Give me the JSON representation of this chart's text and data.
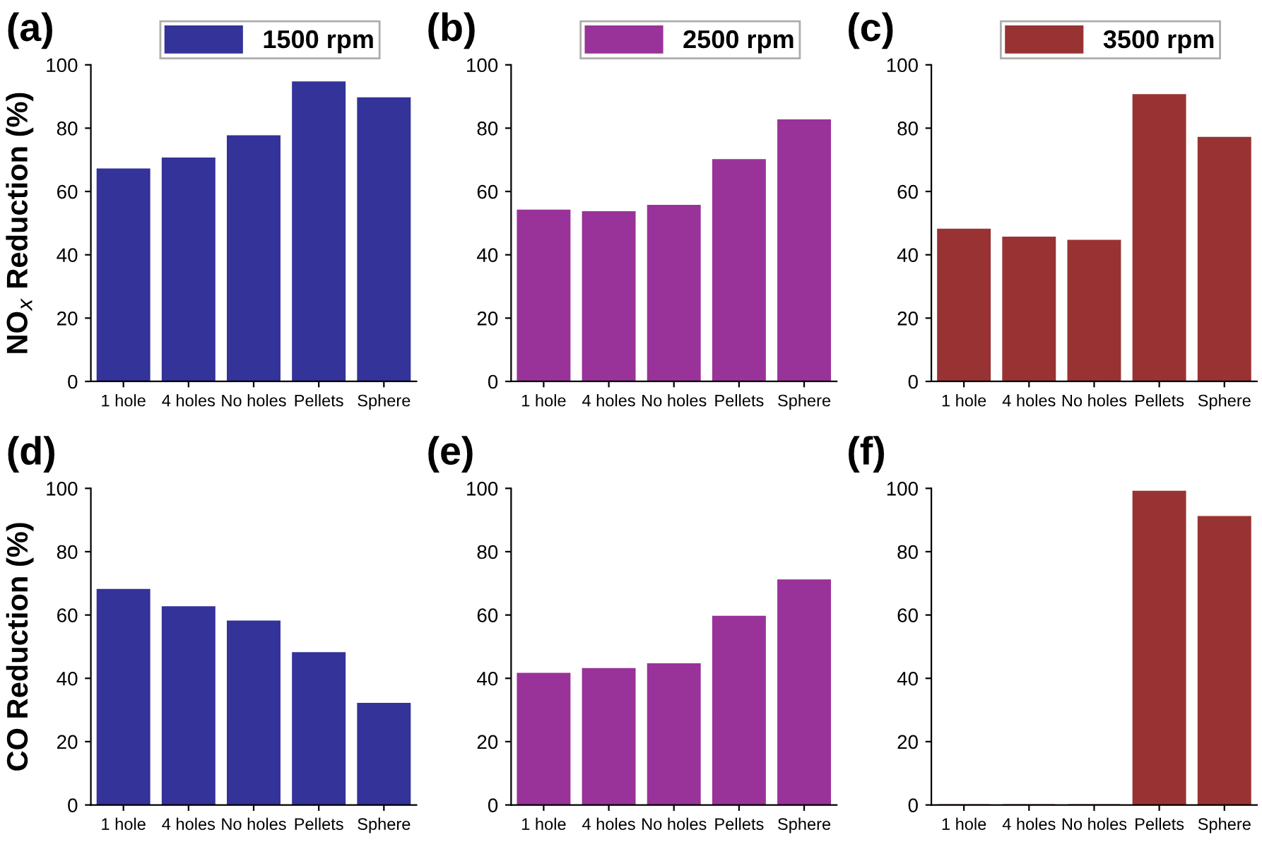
{
  "chart_data": [
    {
      "type": "bar",
      "title": "(a)",
      "ylabel": "NO$_{x}$ Reduction (%)",
      "categories": [
        "1 hole",
        "4 holes",
        "No holes",
        "Pellets",
        "Sphere"
      ],
      "legend": "top",
      "series": [
        {
          "name": "1500 rpm",
          "color": "#333399",
          "values": [
            67,
            70.5,
            77.5,
            94.5,
            89.5
          ]
        }
      ],
      "ylim": [
        0,
        100
      ],
      "yticks": [
        0,
        20,
        40,
        60,
        80,
        100
      ]
    },
    {
      "type": "bar",
      "title": "(b)",
      "categories": [
        "1 hole",
        "4 holes",
        "No holes",
        "Pellets",
        "Sphere"
      ],
      "legend": "top",
      "series": [
        {
          "name": "2500 rpm",
          "color": "#993399",
          "values": [
            54,
            53.5,
            55.5,
            70,
            82.5
          ]
        }
      ],
      "ylim": [
        0,
        100
      ],
      "yticks": [
        0,
        20,
        40,
        60,
        80,
        100
      ]
    },
    {
      "type": "bar",
      "title": "(c)",
      "categories": [
        "1 hole",
        "4 holes",
        "No holes",
        "Pellets",
        "Sphere"
      ],
      "legend": "top",
      "series": [
        {
          "name": "3500 rpm",
          "color": "#993333",
          "values": [
            48,
            45.5,
            44.5,
            90.5,
            77
          ]
        }
      ],
      "ylim": [
        0,
        100
      ],
      "yticks": [
        0,
        20,
        40,
        60,
        80,
        100
      ]
    },
    {
      "type": "bar",
      "title": "(d)",
      "ylabel": "CO Reduction (%)",
      "categories": [
        "1 hole",
        "4 holes",
        "No holes",
        "Pellets",
        "Sphere"
      ],
      "series": [
        {
          "color": "#333399",
          "values": [
            68,
            62.5,
            58,
            48,
            32
          ]
        }
      ],
      "ylim": [
        0,
        100
      ],
      "yticks": [
        0,
        20,
        40,
        60,
        80,
        100
      ]
    },
    {
      "type": "bar",
      "title": "(e)",
      "categories": [
        "1 hole",
        "4 holes",
        "No holes",
        "Pellets",
        "Sphere"
      ],
      "series": [
        {
          "color": "#993399",
          "values": [
            41.5,
            43,
            44.5,
            59.5,
            71
          ]
        }
      ],
      "ylim": [
        0,
        100
      ],
      "yticks": [
        0,
        20,
        40,
        60,
        80,
        100
      ]
    },
    {
      "type": "bar",
      "title": "(f)",
      "categories": [
        "1 hole",
        "4 holes",
        "No holes",
        "Pellets",
        "Sphere"
      ],
      "series": [
        {
          "color": "#993333",
          "values": [
            0,
            0,
            0,
            99,
            91
          ]
        }
      ],
      "ylim": [
        0,
        100
      ],
      "yticks": [
        0,
        20,
        40,
        60,
        80,
        100
      ]
    }
  ]
}
